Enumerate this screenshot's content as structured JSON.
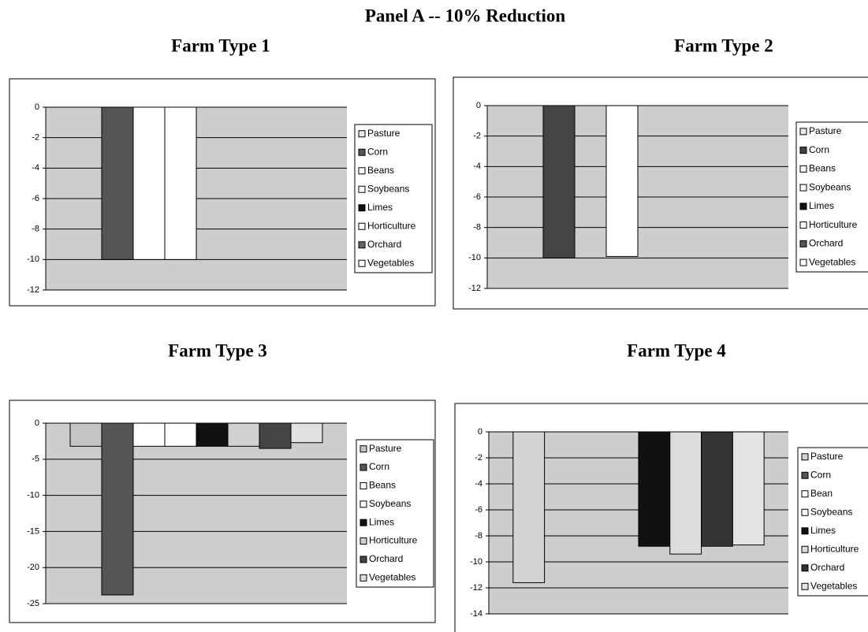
{
  "title": "Panel A -- 10% Reduction",
  "chart_data": [
    {
      "type": "bar",
      "title": "Farm Type 1",
      "ylim": [
        -12,
        0
      ],
      "yticks": [
        0,
        -2,
        -4,
        -6,
        -8,
        -10,
        -12
      ],
      "grid": true,
      "legend": "right",
      "series": [
        {
          "name": "Pasture",
          "color": "#e8e8e8",
          "values": [
            0
          ]
        },
        {
          "name": "Corn",
          "color": "#555555",
          "values": [
            -10
          ]
        },
        {
          "name": "Beans",
          "color": "#ffffff",
          "values": [
            -10
          ]
        },
        {
          "name": "Soybeans",
          "color": "#ffffff",
          "values": [
            -10
          ]
        },
        {
          "name": "Limes",
          "color": "#111111",
          "values": [
            0
          ]
        },
        {
          "name": "Horticulture",
          "color": "#ffffff",
          "values": [
            0
          ]
        },
        {
          "name": "Orchard",
          "color": "#666666",
          "values": [
            0
          ]
        },
        {
          "name": "Vegetables",
          "color": "#ffffff",
          "values": [
            0
          ]
        }
      ]
    },
    {
      "type": "bar",
      "title": "Farm Type 2",
      "ylim": [
        -12,
        0
      ],
      "yticks": [
        0,
        -2,
        -4,
        -6,
        -8,
        -10,
        -12
      ],
      "grid": true,
      "legend": "right",
      "series": [
        {
          "name": "Pasture",
          "color": "#e8e8e8",
          "values": [
            0
          ]
        },
        {
          "name": "Corn",
          "color": "#444444",
          "values": [
            -10
          ]
        },
        {
          "name": "Beans",
          "color": "#ffffff",
          "values": [
            0
          ]
        },
        {
          "name": "Soybeans",
          "color": "#ffffff",
          "values": [
            -9.9
          ]
        },
        {
          "name": "Limes",
          "color": "#111111",
          "values": [
            0
          ]
        },
        {
          "name": "Horticulture",
          "color": "#ffffff",
          "values": [
            0
          ]
        },
        {
          "name": "Orchard",
          "color": "#555555",
          "values": [
            0
          ]
        },
        {
          "name": "Vegetables",
          "color": "#ffffff",
          "values": [
            0
          ]
        }
      ]
    },
    {
      "type": "bar",
      "title": "Farm Type 3",
      "ylim": [
        -25,
        0
      ],
      "yticks": [
        0,
        -5,
        -10,
        -15,
        -20,
        -25
      ],
      "grid": true,
      "legend": "right",
      "series": [
        {
          "name": "Pasture",
          "color": "#c4c4c4",
          "values": [
            -3.2
          ]
        },
        {
          "name": "Corn",
          "color": "#555555",
          "values": [
            -23.8
          ]
        },
        {
          "name": "Beans",
          "color": "#ffffff",
          "values": [
            -3.2
          ]
        },
        {
          "name": "Soybeans",
          "color": "#ffffff",
          "values": [
            -3.2
          ]
        },
        {
          "name": "Limes",
          "color": "#111111",
          "values": [
            -3.2
          ]
        },
        {
          "name": "Horticulture",
          "color": "#d0d0d0",
          "values": [
            -3.2
          ]
        },
        {
          "name": "Orchard",
          "color": "#444444",
          "values": [
            -3.5
          ]
        },
        {
          "name": "Vegetables",
          "color": "#e0e0e0",
          "values": [
            -2.7
          ]
        }
      ]
    },
    {
      "type": "bar",
      "title": "Farm Type 4",
      "ylim": [
        -14,
        0
      ],
      "yticks": [
        0,
        -2,
        -4,
        -6,
        -8,
        -10,
        -12,
        -14
      ],
      "grid": true,
      "legend": "right",
      "series": [
        {
          "name": "Pasture",
          "color": "#d4d4d4",
          "values": [
            -11.6
          ]
        },
        {
          "name": "Corn",
          "color": "#555555",
          "values": [
            0
          ]
        },
        {
          "name": "Bean",
          "color": "#ffffff",
          "values": [
            0
          ]
        },
        {
          "name": "Soybeans",
          "color": "#ffffff",
          "values": [
            0
          ]
        },
        {
          "name": "Limes",
          "color": "#111111",
          "values": [
            -8.8
          ]
        },
        {
          "name": "Horticulture",
          "color": "#dcdcdc",
          "values": [
            -9.4
          ]
        },
        {
          "name": "Orchard",
          "color": "#333333",
          "values": [
            -8.8
          ]
        },
        {
          "name": "Vegetables",
          "color": "#e4e4e4",
          "values": [
            -8.7
          ]
        }
      ]
    }
  ]
}
